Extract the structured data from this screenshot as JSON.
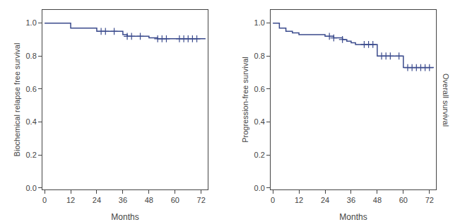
{
  "chart_data": [
    {
      "type": "line",
      "xlabel": "Months",
      "ylabel": "Biochemical relapse free survival",
      "xlim": [
        -1,
        75
      ],
      "xticks": [
        0,
        12,
        24,
        36,
        48,
        60,
        72
      ],
      "ylim": [
        -0.01,
        1.08
      ],
      "yticks": [
        {
          "value": 0.0,
          "label": "0.0"
        },
        0.2,
        0.4,
        0.6,
        0.8,
        {
          "value": 1.0,
          "label": "1.0"
        }
      ],
      "grid": false,
      "series": [
        {
          "type": "line",
          "line_style": "step",
          "color": "#3a4a8c",
          "x": [
            0,
            5,
            10,
            12,
            15,
            20,
            24,
            26,
            28,
            32,
            36,
            38,
            40,
            42,
            44,
            48,
            50,
            52,
            54,
            56,
            58,
            60,
            62,
            64,
            66,
            68,
            70,
            72,
            74
          ],
          "values": [
            1.0,
            1.0,
            1.0,
            0.97,
            0.97,
            0.97,
            0.95,
            0.95,
            0.95,
            0.95,
            0.93,
            0.92,
            0.92,
            0.92,
            0.92,
            0.91,
            0.91,
            0.905,
            0.905,
            0.905,
            0.905,
            0.905,
            0.905,
            0.905,
            0.905,
            0.905,
            0.905,
            0.905,
            0.905
          ]
        },
        {
          "type": "scatter",
          "marker": "+",
          "color": "#3a4a8c",
          "x": [
            26,
            28,
            32,
            38,
            40,
            44,
            52,
            54,
            56,
            62,
            64,
            66,
            68,
            70
          ],
          "values": [
            0.95,
            0.95,
            0.95,
            0.92,
            0.92,
            0.92,
            0.905,
            0.905,
            0.905,
            0.905,
            0.905,
            0.905,
            0.905,
            0.905
          ]
        }
      ]
    },
    {
      "type": "line",
      "xlabel": "Months",
      "ylabel": "Progression-free survival",
      "y2label": "Overall survival",
      "xlim": [
        -1,
        75
      ],
      "xticks": [
        0,
        12,
        24,
        36,
        48,
        60,
        72
      ],
      "ylim": [
        -0.01,
        1.08
      ],
      "yticks": [
        {
          "value": 0.0,
          "label": "0.0"
        },
        0.2,
        0.4,
        0.6,
        0.8,
        {
          "value": 1.0,
          "label": "1.0"
        }
      ],
      "grid": false,
      "series": [
        {
          "type": "line",
          "line_style": "step",
          "color": "#3a4a8c",
          "x": [
            0,
            3,
            6,
            9,
            12,
            15,
            18,
            21,
            24,
            26,
            28,
            30,
            32,
            34,
            36,
            38,
            40,
            42,
            44,
            46,
            48,
            50,
            52,
            54,
            56,
            58,
            60,
            62,
            64,
            66,
            68,
            70,
            72,
            74
          ],
          "values": [
            1.0,
            0.97,
            0.95,
            0.94,
            0.93,
            0.93,
            0.93,
            0.93,
            0.92,
            0.92,
            0.91,
            0.91,
            0.9,
            0.89,
            0.88,
            0.87,
            0.87,
            0.87,
            0.87,
            0.87,
            0.8,
            0.8,
            0.8,
            0.8,
            0.8,
            0.8,
            0.73,
            0.73,
            0.73,
            0.73,
            0.73,
            0.73,
            0.73,
            0.73
          ]
        },
        {
          "type": "scatter",
          "marker": "+",
          "color": "#3a4a8c",
          "x": [
            26,
            28,
            32,
            42,
            44,
            46,
            50,
            52,
            54,
            58,
            62,
            64,
            66,
            68,
            70,
            72
          ],
          "values": [
            0.92,
            0.91,
            0.9,
            0.87,
            0.87,
            0.87,
            0.8,
            0.8,
            0.8,
            0.8,
            0.73,
            0.73,
            0.73,
            0.73,
            0.73,
            0.73
          ]
        }
      ]
    }
  ]
}
